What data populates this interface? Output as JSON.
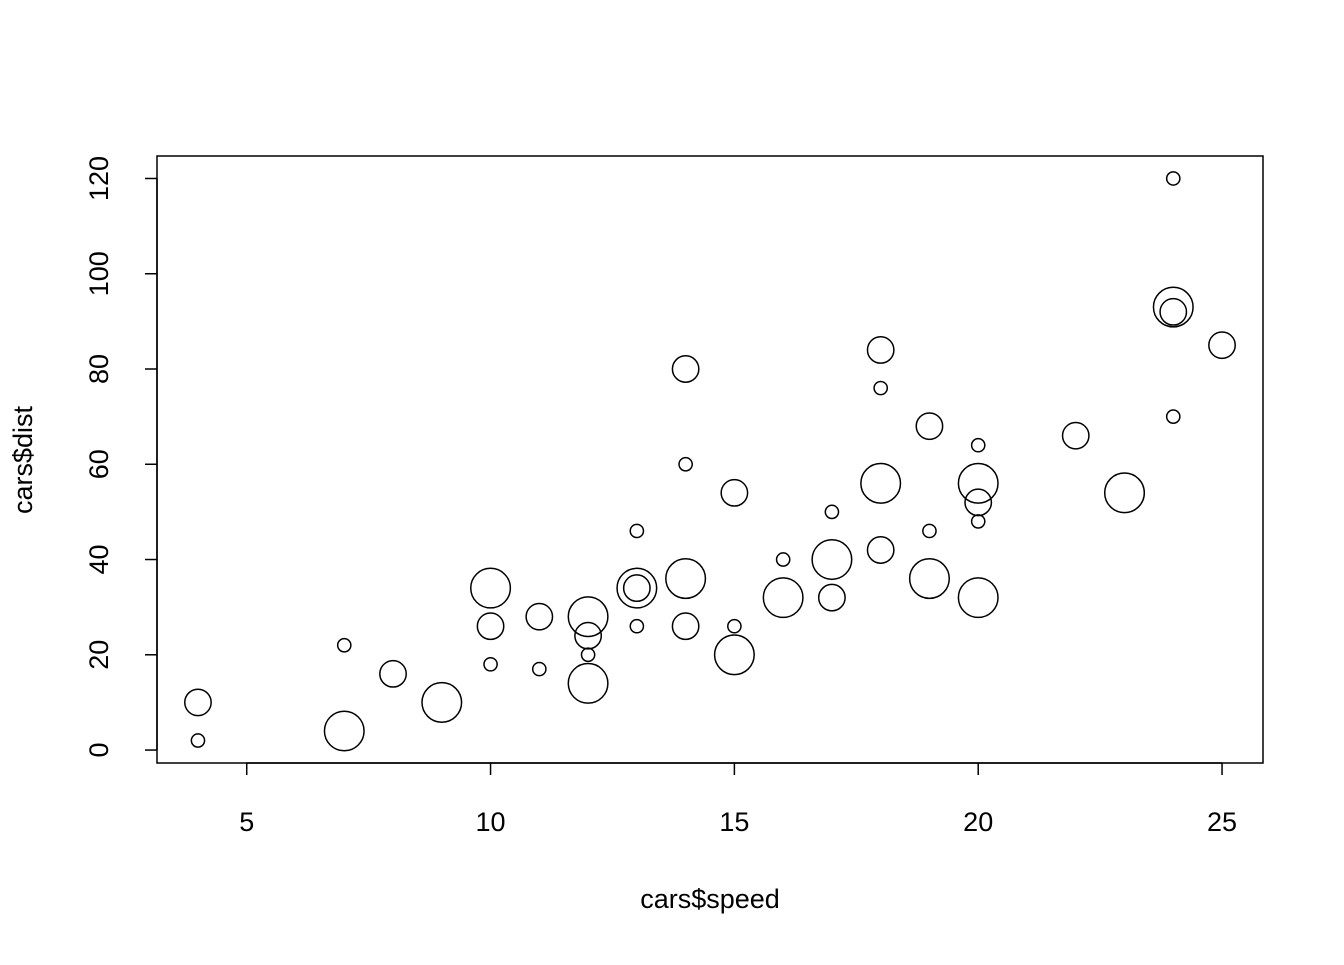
{
  "chart_data": {
    "type": "scatter",
    "x_label": "cars$speed",
    "y_label": "cars$dist",
    "x": [
      4,
      4,
      7,
      7,
      8,
      9,
      10,
      10,
      10,
      11,
      11,
      12,
      12,
      12,
      12,
      13,
      13,
      13,
      13,
      14,
      14,
      14,
      14,
      15,
      15,
      15,
      16,
      16,
      17,
      17,
      17,
      18,
      18,
      18,
      18,
      19,
      19,
      19,
      20,
      20,
      20,
      20,
      20,
      22,
      23,
      24,
      24,
      24,
      24,
      25
    ],
    "y": [
      2,
      10,
      4,
      22,
      16,
      10,
      18,
      26,
      34,
      17,
      28,
      14,
      20,
      24,
      28,
      26,
      34,
      34,
      46,
      26,
      36,
      60,
      80,
      20,
      26,
      54,
      32,
      40,
      32,
      40,
      50,
      42,
      56,
      76,
      84,
      36,
      46,
      68,
      32,
      48,
      52,
      56,
      64,
      66,
      54,
      70,
      92,
      93,
      120,
      85
    ],
    "size": [
      1,
      2,
      3,
      1,
      2,
      3,
      1,
      2,
      3,
      1,
      2,
      3,
      1,
      2,
      3,
      1,
      2,
      3,
      1,
      2,
      3,
      1,
      2,
      3,
      1,
      2,
      3,
      1,
      2,
      3,
      1,
      2,
      3,
      1,
      2,
      3,
      1,
      2,
      3,
      1,
      2,
      3,
      1,
      2,
      3,
      1,
      2,
      3,
      1,
      2
    ],
    "color": "#000000",
    "xlim": [
      3.16,
      25.84
    ],
    "ylim": [
      -2.72,
      124.72
    ],
    "xticks": [
      5,
      10,
      15,
      20,
      25
    ],
    "yticks": [
      0,
      20,
      40,
      60,
      80,
      100,
      120
    ]
  }
}
